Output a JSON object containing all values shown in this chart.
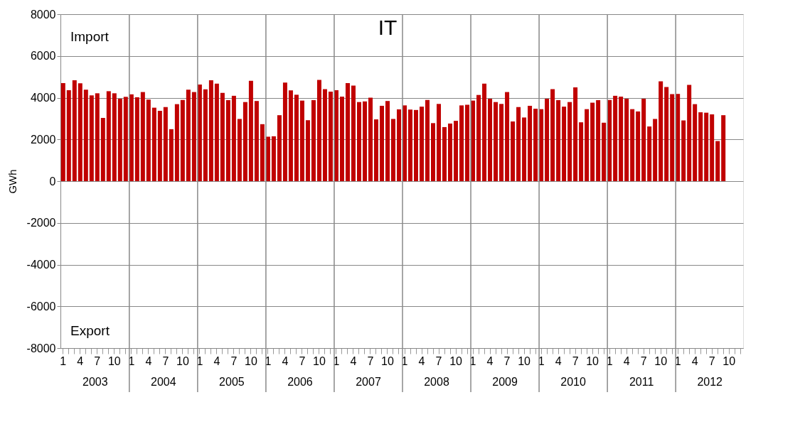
{
  "chart_data": {
    "type": "bar",
    "title": "IT",
    "ylabel": "GWh",
    "categories": [
      "1",
      null,
      null,
      "4",
      null,
      null,
      "7",
      null,
      null,
      "10",
      null,
      null,
      "1",
      null,
      null,
      "4",
      null,
      null,
      "7",
      null,
      null,
      "10",
      null,
      null,
      "1",
      null,
      null,
      "4",
      null,
      null,
      "7",
      null,
      null,
      "10",
      null,
      null,
      "1",
      null,
      null,
      "4",
      null,
      null,
      "7",
      null,
      null,
      "10",
      null,
      null,
      "1",
      null,
      null,
      "4",
      null,
      null,
      "7",
      null,
      null,
      "10",
      null,
      null,
      "1",
      null,
      null,
      "4",
      null,
      null,
      "7",
      null,
      null,
      "10",
      null,
      null,
      "1",
      null,
      null,
      "4",
      null,
      null,
      "7",
      null,
      null,
      "10",
      null,
      null,
      "1",
      null,
      null,
      "4",
      null,
      null,
      "7",
      null,
      null,
      "10",
      null,
      null,
      "1",
      null,
      null,
      "4",
      null,
      null,
      "7",
      null,
      null,
      "10",
      null,
      null,
      "1",
      null,
      null,
      "4",
      null,
      null,
      "7",
      null,
      null,
      "10",
      null,
      null
    ],
    "values": [
      4700,
      4360,
      4830,
      4690,
      4380,
      4110,
      4210,
      3030,
      4310,
      4210,
      3950,
      4040,
      4160,
      4020,
      4270,
      3910,
      3520,
      3370,
      3550,
      2490,
      3690,
      3890,
      4380,
      4270,
      4630,
      4400,
      4830,
      4670,
      4230,
      3880,
      4090,
      2980,
      3790,
      4810,
      3840,
      2730,
      2130,
      2150,
      3160,
      4720,
      4350,
      4140,
      3860,
      2920,
      3880,
      4850,
      4410,
      4290,
      4360,
      4050,
      4700,
      4580,
      3790,
      3820,
      4000,
      2960,
      3610,
      3840,
      2980,
      3440,
      3630,
      3430,
      3410,
      3570,
      3890,
      2780,
      3700,
      2590,
      2760,
      2890,
      3630,
      3660,
      3860,
      4130,
      4670,
      3950,
      3790,
      3700,
      4270,
      2860,
      3550,
      3050,
      3610,
      3470,
      3450,
      3950,
      4410,
      3880,
      3570,
      3790,
      4490,
      2820,
      3450,
      3760,
      3880,
      2800,
      3890,
      4090,
      4050,
      3950,
      3450,
      3340,
      3950,
      2620,
      2980,
      4780,
      4510,
      4170,
      4180,
      2910,
      4610,
      3690,
      3300,
      3280,
      3200,
      1920,
      3160,
      null,
      null,
      null
    ],
    "color": "#c00000",
    "ylim": [
      -8000,
      8000
    ],
    "yticks": [
      -8000,
      -6000,
      -4000,
      -2000,
      0,
      2000,
      4000,
      6000,
      8000
    ],
    "grid": "y",
    "annotations": [
      "Import",
      "Export",
      "2003",
      "2004",
      "2005",
      "2006",
      "2007",
      "2008",
      "2009",
      "2010",
      "2011",
      "2012"
    ]
  }
}
